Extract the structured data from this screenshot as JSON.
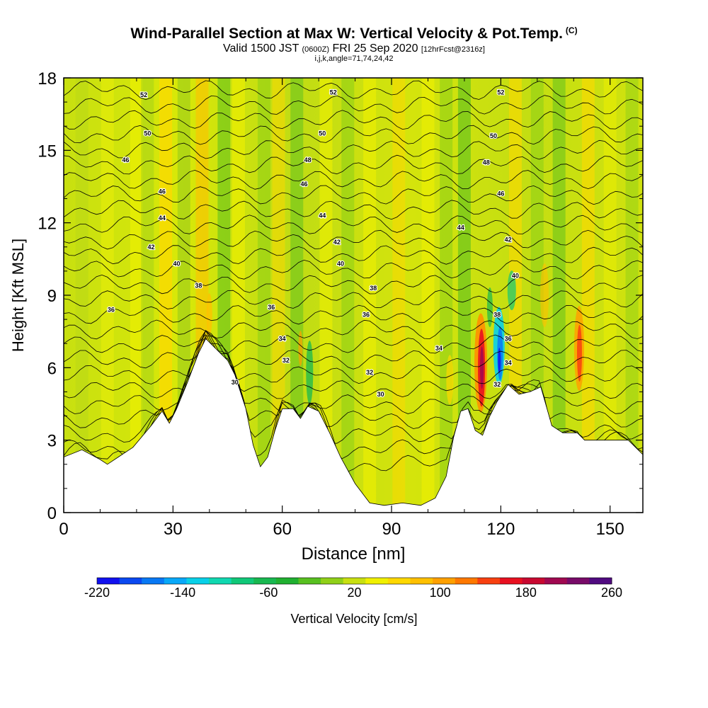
{
  "header": {
    "title": "Wind-Parallel Section at Max W: Vertical Velocity & Pot.Temp.",
    "title_mark": "(C)",
    "valid_prefix": "Valid 1500 JST",
    "valid_utc": "(0600Z)",
    "valid_date": "FRI 25 Sep 2020",
    "forecast": "[12hrFcst@2316z]",
    "indices": "i,j,k,angle=71,74,24,42"
  },
  "chart_data": {
    "type": "contour-section",
    "xlabel": "Distance [nm]",
    "ylabel": "Height [Kft MSL]",
    "xlim": [
      0,
      159
    ],
    "ylim": [
      0,
      18
    ],
    "x_ticks": [
      0,
      30,
      60,
      90,
      120,
      150
    ],
    "y_ticks": [
      0,
      3,
      6,
      9,
      12,
      15,
      18
    ],
    "colorbar": {
      "label": "Vertical Velocity [cm/s]",
      "tick_labels": [
        -220,
        -140,
        -60,
        20,
        100,
        180,
        260
      ],
      "colors": [
        "#1010ee",
        "#0a48f0",
        "#0878f4",
        "#08a8f8",
        "#08d0e8",
        "#10d8b0",
        "#10c878",
        "#18b850",
        "#20b030",
        "#58c020",
        "#90d018",
        "#c8e010",
        "#f0f000",
        "#ffd800",
        "#ffc000",
        "#ffa000",
        "#ff7800",
        "#f84010",
        "#e81020",
        "#c80830",
        "#a00850",
        "#780a68",
        "#500a80"
      ]
    },
    "terrain_height_kft": [
      [
        0,
        2.3
      ],
      [
        5,
        2.6
      ],
      [
        10,
        2.2
      ],
      [
        12,
        2.0
      ],
      [
        15,
        2.3
      ],
      [
        19,
        2.7
      ],
      [
        24,
        3.6
      ],
      [
        27,
        4.2
      ],
      [
        29,
        3.7
      ],
      [
        31,
        4.3
      ],
      [
        34,
        5.4
      ],
      [
        37,
        6.6
      ],
      [
        39,
        7.2
      ],
      [
        43,
        6.6
      ],
      [
        45,
        6.3
      ],
      [
        47,
        5.7
      ],
      [
        50,
        4.3
      ],
      [
        52,
        2.8
      ],
      [
        54,
        1.9
      ],
      [
        56,
        2.3
      ],
      [
        58,
        3.4
      ],
      [
        60,
        4.3
      ],
      [
        63,
        4.3
      ],
      [
        65,
        3.9
      ],
      [
        67,
        4.4
      ],
      [
        70,
        4.2
      ],
      [
        73,
        3.3
      ],
      [
        76,
        2.3
      ],
      [
        80,
        1.2
      ],
      [
        84,
        0.4
      ],
      [
        88,
        0.3
      ],
      [
        93,
        0.4
      ],
      [
        98,
        0.3
      ],
      [
        102,
        0.6
      ],
      [
        105,
        1.5
      ],
      [
        107,
        3.1
      ],
      [
        109,
        4.2
      ],
      [
        111,
        4.3
      ],
      [
        113,
        3.4
      ],
      [
        115,
        3.2
      ],
      [
        117,
        4.0
      ],
      [
        119,
        4.6
      ],
      [
        122,
        5.3
      ],
      [
        125,
        4.9
      ],
      [
        128,
        5.0
      ],
      [
        131,
        5.2
      ],
      [
        134,
        3.6
      ],
      [
        137,
        3.3
      ],
      [
        141,
        3.3
      ],
      [
        143,
        3.0
      ],
      [
        145,
        3.0
      ],
      [
        150,
        3.0
      ],
      [
        155,
        3.0
      ],
      [
        159,
        2.4
      ]
    ],
    "theta_contour_labels": [
      {
        "label": "52",
        "x": 22,
        "y": 17.3
      },
      {
        "label": "50",
        "x": 23,
        "y": 15.7
      },
      {
        "label": "46",
        "x": 17,
        "y": 14.6
      },
      {
        "label": "46",
        "x": 27,
        "y": 13.3
      },
      {
        "label": "44",
        "x": 27,
        "y": 12.2
      },
      {
        "label": "42",
        "x": 24,
        "y": 11.0
      },
      {
        "label": "40",
        "x": 31,
        "y": 10.3
      },
      {
        "label": "38",
        "x": 37,
        "y": 9.4
      },
      {
        "label": "36",
        "x": 13,
        "y": 8.4
      },
      {
        "label": "30",
        "x": 47,
        "y": 5.4
      },
      {
        "label": "32",
        "x": 61,
        "y": 6.3
      },
      {
        "label": "34",
        "x": 60,
        "y": 7.2
      },
      {
        "label": "36",
        "x": 57,
        "y": 8.5
      },
      {
        "label": "52",
        "x": 74,
        "y": 17.4
      },
      {
        "label": "50",
        "x": 71,
        "y": 15.7
      },
      {
        "label": "48",
        "x": 67,
        "y": 14.6
      },
      {
        "label": "46",
        "x": 66,
        "y": 13.6
      },
      {
        "label": "44",
        "x": 71,
        "y": 12.3
      },
      {
        "label": "42",
        "x": 75,
        "y": 11.2
      },
      {
        "label": "40",
        "x": 76,
        "y": 10.3
      },
      {
        "label": "38",
        "x": 85,
        "y": 9.3
      },
      {
        "label": "36",
        "x": 83,
        "y": 8.2
      },
      {
        "label": "34",
        "x": 103,
        "y": 6.8
      },
      {
        "label": "32",
        "x": 84,
        "y": 5.8
      },
      {
        "label": "30",
        "x": 87,
        "y": 4.9
      },
      {
        "label": "52",
        "x": 120,
        "y": 17.4
      },
      {
        "label": "50",
        "x": 118,
        "y": 15.6
      },
      {
        "label": "48",
        "x": 116,
        "y": 14.5
      },
      {
        "label": "46",
        "x": 120,
        "y": 13.2
      },
      {
        "label": "44",
        "x": 109,
        "y": 11.8
      },
      {
        "label": "42",
        "x": 122,
        "y": 11.3
      },
      {
        "label": "40",
        "x": 124,
        "y": 9.8
      },
      {
        "label": "38",
        "x": 119,
        "y": 8.2
      },
      {
        "label": "36",
        "x": 122,
        "y": 7.2
      },
      {
        "label": "34",
        "x": 122,
        "y": 6.2
      },
      {
        "label": "32",
        "x": 119,
        "y": 5.3
      }
    ]
  }
}
